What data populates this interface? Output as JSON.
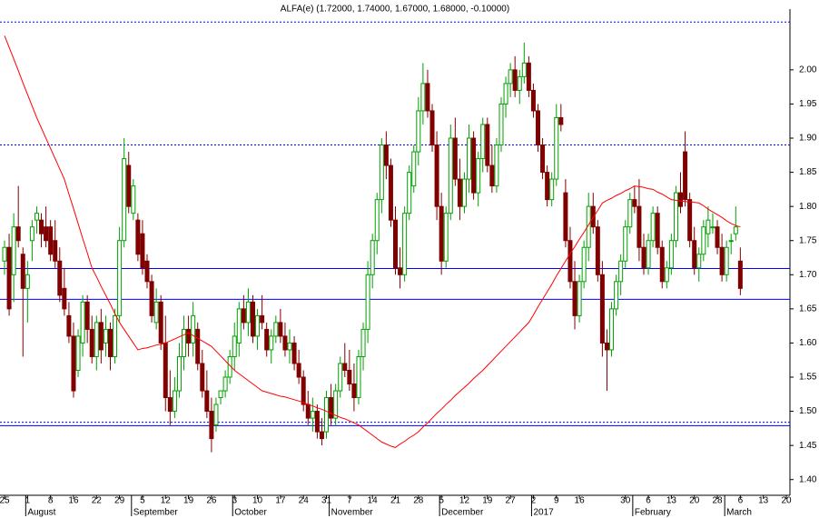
{
  "chart_data": {
    "type": "candlestick",
    "title": "ALFA(e) (1.72000, 1.74000, 1.67000, 1.68000, -0.10000)",
    "ylim": [
      1.377,
      2.089
    ],
    "yticks": [
      {
        "value": 1.4,
        "label": "1.40"
      },
      {
        "value": 1.45,
        "label": "1.45"
      },
      {
        "value": 1.5,
        "label": "1.50"
      },
      {
        "value": 1.55,
        "label": "1.55"
      },
      {
        "value": 1.6,
        "label": "1.60"
      },
      {
        "value": 1.65,
        "label": "1.65"
      },
      {
        "value": 1.7,
        "label": "1.70"
      },
      {
        "value": 1.75,
        "label": "1.75"
      },
      {
        "value": 1.8,
        "label": "1.80"
      },
      {
        "value": 1.85,
        "label": "1.85"
      },
      {
        "value": 1.9,
        "label": "1.90"
      },
      {
        "value": 1.95,
        "label": "1.95"
      },
      {
        "value": 2.0,
        "label": "2.00"
      }
    ],
    "up_color": "#00a000",
    "down_color": "#800000",
    "categories": [
      "25",
      null,
      null,
      null,
      null,
      "1",
      null,
      null,
      null,
      null,
      "8",
      null,
      null,
      null,
      null,
      "16",
      null,
      null,
      null,
      null,
      "22",
      null,
      null,
      null,
      null,
      "29",
      null,
      null,
      null,
      null,
      "5",
      null,
      null,
      null,
      null,
      "12",
      null,
      null,
      null,
      null,
      "19",
      null,
      null,
      null,
      null,
      "26",
      null,
      null,
      null,
      null,
      "3",
      null,
      null,
      null,
      null,
      "10",
      null,
      null,
      null,
      null,
      "17",
      null,
      null,
      null,
      null,
      "24",
      null,
      null,
      null,
      null,
      "31",
      null,
      null,
      null,
      null,
      "7",
      null,
      null,
      null,
      null,
      "14",
      null,
      null,
      null,
      null,
      "21",
      null,
      null,
      null,
      null,
      "28",
      null,
      null,
      null,
      null,
      "5",
      null,
      null,
      null,
      null,
      "12",
      null,
      null,
      null,
      null,
      "19",
      null,
      null,
      null,
      null,
      "27",
      null,
      null,
      null,
      null,
      "2",
      null,
      null,
      null,
      null,
      "9",
      null,
      null,
      null,
      null,
      "16",
      null,
      null,
      null,
      null,
      null,
      null,
      null,
      null,
      null,
      "30",
      null,
      null,
      null,
      null,
      "6",
      null,
      null,
      null,
      null,
      "13",
      null,
      null,
      null,
      null,
      "20",
      null,
      null,
      null,
      null,
      "28",
      null,
      null,
      null,
      null,
      "6",
      null,
      null,
      null,
      null,
      "13",
      null,
      null,
      null,
      null,
      "20"
    ],
    "months": [
      {
        "name": "August",
        "index": 5
      },
      {
        "name": "September",
        "index": 28
      },
      {
        "name": "October",
        "index": 50
      },
      {
        "name": "November",
        "index": 71
      },
      {
        "name": "December",
        "index": 95
      },
      {
        "name": "2017",
        "index": 115
      },
      {
        "name": "February",
        "index": 137
      },
      {
        "name": "March",
        "index": 157
      }
    ],
    "ohlc": [
      [
        1.72,
        1.75,
        1.7,
        1.74
      ],
      [
        1.74,
        1.76,
        1.64,
        1.65
      ],
      [
        1.7,
        1.79,
        1.66,
        1.77
      ],
      [
        1.77,
        1.83,
        1.74,
        1.75
      ],
      [
        1.73,
        1.74,
        1.58,
        1.68
      ],
      [
        1.68,
        1.72,
        1.63,
        1.7
      ],
      [
        1.75,
        1.78,
        1.72,
        1.77
      ],
      [
        1.78,
        1.8,
        1.76,
        1.79
      ],
      [
        1.78,
        1.79,
        1.74,
        1.76
      ],
      [
        1.77,
        1.8,
        1.74,
        1.75
      ],
      [
        1.77,
        1.78,
        1.72,
        1.73
      ],
      [
        1.75,
        1.78,
        1.71,
        1.72
      ],
      [
        1.72,
        1.74,
        1.66,
        1.67
      ],
      [
        1.68,
        1.71,
        1.64,
        1.65
      ],
      [
        1.64,
        1.66,
        1.6,
        1.61
      ],
      [
        1.61,
        1.63,
        1.52,
        1.53
      ],
      [
        1.56,
        1.62,
        1.55,
        1.61
      ],
      [
        1.6,
        1.67,
        1.58,
        1.66
      ],
      [
        1.66,
        1.67,
        1.6,
        1.62
      ],
      [
        1.62,
        1.64,
        1.57,
        1.58
      ],
      [
        1.58,
        1.64,
        1.56,
        1.63
      ],
      [
        1.63,
        1.65,
        1.57,
        1.59
      ],
      [
        1.6,
        1.64,
        1.58,
        1.62
      ],
      [
        1.62,
        1.63,
        1.56,
        1.58
      ],
      [
        1.58,
        1.65,
        1.57,
        1.64
      ],
      [
        1.64,
        1.77,
        1.63,
        1.75
      ],
      [
        1.75,
        1.9,
        1.74,
        1.87
      ],
      [
        1.86,
        1.88,
        1.79,
        1.8
      ],
      [
        1.79,
        1.84,
        1.78,
        1.83
      ],
      [
        1.78,
        1.79,
        1.72,
        1.73
      ],
      [
        1.76,
        1.78,
        1.7,
        1.71
      ],
      [
        1.72,
        1.73,
        1.68,
        1.69
      ],
      [
        1.69,
        1.7,
        1.63,
        1.64
      ],
      [
        1.63,
        1.68,
        1.62,
        1.66
      ],
      [
        1.66,
        1.67,
        1.59,
        1.6
      ],
      [
        1.6,
        1.64,
        1.5,
        1.52
      ],
      [
        1.52,
        1.56,
        1.48,
        1.5
      ],
      [
        1.5,
        1.55,
        1.49,
        1.53
      ],
      [
        1.53,
        1.6,
        1.52,
        1.58
      ],
      [
        1.58,
        1.64,
        1.56,
        1.62
      ],
      [
        1.62,
        1.64,
        1.58,
        1.6
      ],
      [
        1.6,
        1.66,
        1.58,
        1.64
      ],
      [
        1.62,
        1.63,
        1.56,
        1.57
      ],
      [
        1.57,
        1.59,
        1.52,
        1.53
      ],
      [
        1.53,
        1.56,
        1.49,
        1.5
      ],
      [
        1.5,
        1.52,
        1.44,
        1.46
      ],
      [
        1.48,
        1.52,
        1.47,
        1.51
      ],
      [
        1.52,
        1.53,
        1.51,
        1.53
      ],
      [
        1.53,
        1.56,
        1.52,
        1.55
      ],
      [
        1.55,
        1.59,
        1.54,
        1.58
      ],
      [
        1.58,
        1.63,
        1.56,
        1.61
      ],
      [
        1.6,
        1.66,
        1.58,
        1.65
      ],
      [
        1.65,
        1.67,
        1.62,
        1.63
      ],
      [
        1.63,
        1.68,
        1.61,
        1.66
      ],
      [
        1.66,
        1.67,
        1.6,
        1.61
      ],
      [
        1.61,
        1.65,
        1.59,
        1.64
      ],
      [
        1.64,
        1.67,
        1.62,
        1.63
      ],
      [
        1.62,
        1.63,
        1.58,
        1.59
      ],
      [
        1.59,
        1.62,
        1.57,
        1.61
      ],
      [
        1.61,
        1.64,
        1.6,
        1.63
      ],
      [
        1.63,
        1.65,
        1.6,
        1.61
      ],
      [
        1.61,
        1.63,
        1.58,
        1.59
      ],
      [
        1.59,
        1.62,
        1.57,
        1.6
      ],
      [
        1.6,
        1.61,
        1.56,
        1.57
      ],
      [
        1.57,
        1.59,
        1.54,
        1.55
      ],
      [
        1.55,
        1.56,
        1.5,
        1.51
      ],
      [
        1.51,
        1.53,
        1.48,
        1.49
      ],
      [
        1.49,
        1.52,
        1.47,
        1.5
      ],
      [
        1.5,
        1.51,
        1.46,
        1.47
      ],
      [
        1.47,
        1.49,
        1.45,
        1.46
      ],
      [
        1.47,
        1.53,
        1.46,
        1.52
      ],
      [
        1.52,
        1.54,
        1.48,
        1.49
      ],
      [
        1.49,
        1.54,
        1.48,
        1.53
      ],
      [
        1.53,
        1.58,
        1.52,
        1.57
      ],
      [
        1.57,
        1.6,
        1.55,
        1.56
      ],
      [
        1.56,
        1.59,
        1.53,
        1.54
      ],
      [
        1.54,
        1.57,
        1.5,
        1.52
      ],
      [
        1.52,
        1.59,
        1.51,
        1.58
      ],
      [
        1.58,
        1.63,
        1.56,
        1.62
      ],
      [
        1.62,
        1.72,
        1.6,
        1.7
      ],
      [
        1.7,
        1.76,
        1.68,
        1.75
      ],
      [
        1.75,
        1.82,
        1.73,
        1.81
      ],
      [
        1.81,
        1.9,
        1.79,
        1.89
      ],
      [
        1.89,
        1.91,
        1.84,
        1.86
      ],
      [
        1.86,
        1.87,
        1.77,
        1.78
      ],
      [
        1.78,
        1.8,
        1.7,
        1.71
      ],
      [
        1.71,
        1.74,
        1.68,
        1.7
      ],
      [
        1.7,
        1.8,
        1.69,
        1.79
      ],
      [
        1.79,
        1.86,
        1.78,
        1.85
      ],
      [
        1.83,
        1.89,
        1.82,
        1.88
      ],
      [
        1.88,
        1.96,
        1.86,
        1.94
      ],
      [
        1.94,
        2.01,
        1.92,
        1.98
      ],
      [
        1.98,
        2.0,
        1.93,
        1.94
      ],
      [
        1.94,
        1.95,
        1.88,
        1.89
      ],
      [
        1.89,
        1.91,
        1.78,
        1.8
      ],
      [
        1.8,
        1.82,
        1.7,
        1.72
      ],
      [
        1.72,
        1.8,
        1.71,
        1.79
      ],
      [
        1.79,
        1.92,
        1.78,
        1.9
      ],
      [
        1.9,
        1.93,
        1.83,
        1.84
      ],
      [
        1.84,
        1.87,
        1.78,
        1.8
      ],
      [
        1.8,
        1.85,
        1.79,
        1.84
      ],
      [
        1.84,
        1.92,
        1.82,
        1.9
      ],
      [
        1.9,
        1.91,
        1.81,
        1.82
      ],
      [
        1.82,
        1.88,
        1.8,
        1.87
      ],
      [
        1.87,
        1.93,
        1.85,
        1.92
      ],
      [
        1.92,
        1.93,
        1.85,
        1.86
      ],
      [
        1.86,
        1.89,
        1.82,
        1.83
      ],
      [
        1.83,
        1.9,
        1.82,
        1.89
      ],
      [
        1.89,
        1.96,
        1.88,
        1.95
      ],
      [
        1.95,
        1.99,
        1.93,
        1.98
      ],
      [
        1.98,
        2.01,
        1.96,
        2.0
      ],
      [
        2.0,
        2.02,
        1.96,
        1.97
      ],
      [
        1.97,
        2.0,
        1.95,
        1.99
      ],
      [
        1.99,
        2.04,
        1.98,
        2.01
      ],
      [
        2.01,
        2.02,
        1.96,
        1.97
      ],
      [
        1.97,
        1.98,
        1.93,
        1.94
      ],
      [
        1.94,
        1.95,
        1.88,
        1.89
      ],
      [
        1.89,
        1.9,
        1.84,
        1.85
      ],
      [
        1.85,
        1.86,
        1.8,
        1.81
      ],
      [
        1.81,
        1.85,
        1.8,
        1.84
      ],
      [
        1.84,
        1.95,
        1.83,
        1.93
      ],
      [
        1.93,
        1.95,
        1.91,
        1.92
      ],
      [
        1.82,
        1.84,
        1.74,
        1.75
      ],
      [
        1.75,
        1.77,
        1.68,
        1.69
      ],
      [
        1.69,
        1.72,
        1.62,
        1.64
      ],
      [
        1.64,
        1.7,
        1.63,
        1.69
      ],
      [
        1.69,
        1.75,
        1.68,
        1.74
      ],
      [
        1.74,
        1.82,
        1.72,
        1.8
      ],
      [
        1.8,
        1.82,
        1.76,
        1.77
      ],
      [
        1.77,
        1.78,
        1.69,
        1.7
      ],
      [
        1.7,
        1.72,
        1.58,
        1.6
      ],
      [
        1.6,
        1.62,
        1.53,
        1.59
      ],
      [
        1.59,
        1.66,
        1.58,
        1.65
      ],
      [
        1.65,
        1.7,
        1.64,
        1.69
      ],
      [
        1.69,
        1.73,
        1.67,
        1.72
      ],
      [
        1.72,
        1.78,
        1.71,
        1.77
      ],
      [
        1.77,
        1.82,
        1.76,
        1.81
      ],
      [
        1.81,
        1.83,
        1.79,
        1.8
      ],
      [
        1.8,
        1.84,
        1.72,
        1.74
      ],
      [
        1.74,
        1.76,
        1.7,
        1.71
      ],
      [
        1.71,
        1.76,
        1.7,
        1.75
      ],
      [
        1.75,
        1.8,
        1.74,
        1.79
      ],
      [
        1.79,
        1.8,
        1.73,
        1.74
      ],
      [
        1.74,
        1.75,
        1.68,
        1.69
      ],
      [
        1.69,
        1.72,
        1.68,
        1.71
      ],
      [
        1.71,
        1.76,
        1.7,
        1.75
      ],
      [
        1.75,
        1.83,
        1.74,
        1.82
      ],
      [
        1.82,
        1.85,
        1.79,
        1.8
      ],
      [
        1.88,
        1.91,
        1.8,
        1.81
      ],
      [
        1.81,
        1.82,
        1.74,
        1.75
      ],
      [
        1.75,
        1.77,
        1.7,
        1.71
      ],
      [
        1.71,
        1.74,
        1.69,
        1.73
      ],
      [
        1.73,
        1.78,
        1.72,
        1.77
      ],
      [
        1.76,
        1.8,
        1.74,
        1.78
      ],
      [
        1.77,
        1.79,
        1.76,
        1.77
      ],
      [
        1.77,
        1.78,
        1.73,
        1.74
      ],
      [
        1.74,
        1.76,
        1.69,
        1.7
      ],
      [
        1.7,
        1.75,
        1.69,
        1.74
      ],
      [
        1.75,
        1.76,
        1.73,
        1.75
      ],
      [
        1.76,
        1.8,
        1.75,
        1.77
      ],
      [
        1.72,
        1.74,
        1.67,
        1.68
      ],
      null,
      null,
      null,
      null,
      null,
      null,
      null,
      null,
      null,
      null
    ],
    "ma": {
      "color": "#ff0000",
      "values": [
        2.05,
        2.033,
        2.016,
        1.999,
        1.981,
        1.964,
        1.947,
        1.93,
        1.915,
        1.9,
        1.885,
        1.87,
        1.855,
        1.84,
        1.818,
        1.797,
        1.775,
        1.753,
        1.732,
        1.71,
        1.697,
        1.683,
        1.67,
        1.657,
        1.643,
        1.63,
        1.62,
        1.61,
        1.6,
        1.59,
        1.592,
        1.593,
        1.595,
        1.597,
        1.598,
        1.6,
        1.603,
        1.606,
        1.609,
        1.612,
        1.615,
        1.611,
        1.607,
        1.603,
        1.599,
        1.595,
        1.588,
        1.581,
        1.574,
        1.567,
        1.56,
        1.555,
        1.55,
        1.545,
        1.54,
        1.535,
        1.53,
        1.528,
        1.526,
        1.524,
        1.522,
        1.521,
        1.519,
        1.517,
        1.515,
        1.513,
        1.51,
        1.508,
        1.505,
        1.503,
        1.5,
        1.497,
        1.494,
        1.491,
        1.489,
        1.486,
        1.483,
        1.48,
        1.475,
        1.47,
        1.465,
        1.46,
        1.455,
        1.452,
        1.449,
        1.447,
        1.452,
        1.456,
        1.461,
        1.465,
        1.47,
        1.477,
        1.483,
        1.49,
        1.497,
        1.503,
        1.51,
        1.516,
        1.523,
        1.529,
        1.535,
        1.541,
        1.548,
        1.554,
        1.56,
        1.567,
        1.574,
        1.581,
        1.588,
        1.595,
        1.602,
        1.609,
        1.616,
        1.623,
        1.63,
        1.641,
        1.653,
        1.664,
        1.675,
        1.686,
        1.698,
        1.709,
        1.72,
        1.731,
        1.741,
        1.752,
        1.762,
        1.773,
        1.784,
        1.794,
        1.805,
        1.809,
        1.812,
        1.816,
        1.819,
        1.823,
        1.826,
        1.83,
        1.829,
        1.828,
        1.826,
        1.825,
        1.821,
        1.818,
        1.814,
        1.81,
        1.809,
        1.808,
        1.807,
        1.807,
        1.806,
        1.805,
        1.801,
        1.796,
        1.792,
        1.788,
        1.784,
        1.779,
        1.775,
        1.772,
        1.77,
        null,
        null,
        null,
        null,
        null,
        null,
        null,
        null,
        null,
        null
      ]
    },
    "hlines": [
      {
        "value": 2.07,
        "style": "dotted",
        "color": "#0000ff"
      },
      {
        "value": 1.89,
        "style": "dotted",
        "color": "#0000ff"
      },
      {
        "value": 1.709,
        "style": "solid",
        "color": "#0000ff"
      },
      {
        "value": 1.664,
        "style": "solid",
        "color": "#0000ff"
      },
      {
        "value": 1.484,
        "style": "dotted",
        "color": "#0000ff"
      },
      {
        "value": 1.479,
        "style": "solid",
        "color": "#0000ff"
      }
    ]
  }
}
